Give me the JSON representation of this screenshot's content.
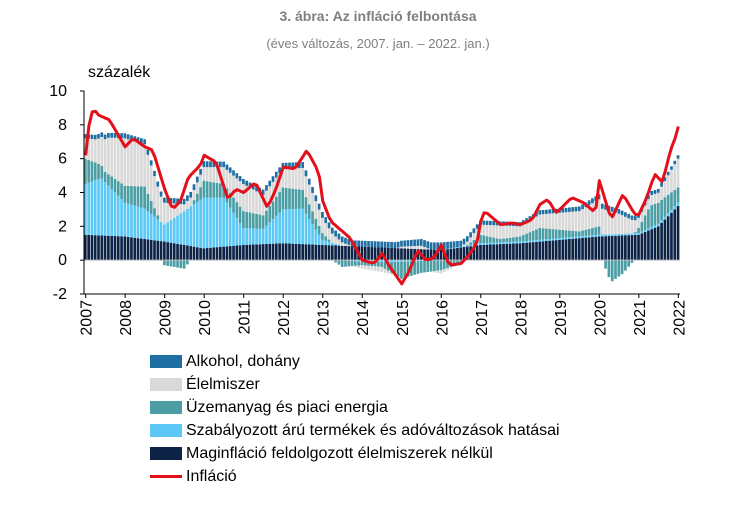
{
  "chart_data": {
    "type": "bar",
    "title": "3. ábra: Az infláció felbontása",
    "subtitle": "(éves változás, 2007. jan. – 2022. jan.)",
    "ylabel": "százalék",
    "ylim": [
      -2,
      10
    ],
    "y_ticks": [
      "10",
      "8",
      "6",
      "4",
      "2",
      "0",
      "-2"
    ],
    "x_tick_labels": [
      "2007",
      "2008",
      "2009",
      "2010",
      "2011",
      "2012",
      "2013",
      "2014",
      "2015",
      "2016",
      "2017",
      "2018",
      "2019",
      "2020",
      "2021",
      "2022"
    ],
    "x_start": "2007-01",
    "x_end": "2022-01",
    "grid": false,
    "legend_position": "bottom-left",
    "series": [
      {
        "name": "Alkohol, dohány",
        "color": "#1f6fa3",
        "kind": "bar",
        "keyframes": [
          [
            2007.0,
            0.25
          ],
          [
            2008.0,
            0.3
          ],
          [
            2009.0,
            0.3
          ],
          [
            2010.0,
            0.35
          ],
          [
            2011.0,
            0.3
          ],
          [
            2012.0,
            0.35
          ],
          [
            2013.0,
            0.35
          ],
          [
            2014.0,
            0.35
          ],
          [
            2015.0,
            0.35
          ],
          [
            2016.0,
            0.45
          ],
          [
            2017.0,
            0.25
          ],
          [
            2018.0,
            0.25
          ],
          [
            2019.0,
            0.25
          ],
          [
            2020.0,
            0.3
          ],
          [
            2021.0,
            0.25
          ],
          [
            2022.0,
            0.2
          ]
        ]
      },
      {
        "name": "Élelmiszer",
        "color": "#d9d9d9",
        "kind": "bar",
        "keyframes": [
          [
            2007.0,
            1.2
          ],
          [
            2007.3,
            1.4
          ],
          [
            2007.6,
            2.2
          ],
          [
            2008.0,
            2.8
          ],
          [
            2008.5,
            2.5
          ],
          [
            2009.0,
            1.3
          ],
          [
            2009.5,
            0.4
          ],
          [
            2010.0,
            0.8
          ],
          [
            2010.5,
            1.0
          ],
          [
            2011.0,
            1.6
          ],
          [
            2011.5,
            1.2
          ],
          [
            2012.0,
            1.1
          ],
          [
            2012.5,
            1.3
          ],
          [
            2013.0,
            0.9
          ],
          [
            2013.5,
            0.2
          ],
          [
            2014.0,
            -0.2
          ],
          [
            2014.5,
            -0.3
          ],
          [
            2015.0,
            0.1
          ],
          [
            2015.5,
            0.2
          ],
          [
            2016.0,
            -0.2
          ],
          [
            2016.5,
            0.0
          ],
          [
            2017.0,
            0.6
          ],
          [
            2017.5,
            0.8
          ],
          [
            2018.0,
            0.6
          ],
          [
            2018.5,
            0.8
          ],
          [
            2019.0,
            1.0
          ],
          [
            2019.5,
            1.2
          ],
          [
            2020.0,
            1.6
          ],
          [
            2020.5,
            1.2
          ],
          [
            2021.0,
            0.6
          ],
          [
            2021.5,
            0.6
          ],
          [
            2022.0,
            1.7
          ]
        ]
      },
      {
        "name": "Üzemanyag és piaci energia",
        "color": "#4a9ea4",
        "kind": "bar",
        "keyframes": [
          [
            2007.0,
            1.5
          ],
          [
            2007.5,
            0.6
          ],
          [
            2008.0,
            1.0
          ],
          [
            2008.5,
            1.3
          ],
          [
            2009.0,
            -0.3
          ],
          [
            2009.5,
            -0.5
          ],
          [
            2010.0,
            1.0
          ],
          [
            2010.5,
            0.8
          ],
          [
            2011.0,
            1.0
          ],
          [
            2011.5,
            0.8
          ],
          [
            2012.0,
            1.3
          ],
          [
            2012.5,
            1.1
          ],
          [
            2013.0,
            0.4
          ],
          [
            2013.5,
            -0.4
          ],
          [
            2014.0,
            -0.2
          ],
          [
            2014.5,
            -0.3
          ],
          [
            2015.0,
            -1.0
          ],
          [
            2015.5,
            -0.7
          ],
          [
            2016.0,
            -0.6
          ],
          [
            2016.5,
            -0.2
          ],
          [
            2017.0,
            0.5
          ],
          [
            2017.5,
            0.2
          ],
          [
            2018.0,
            0.3
          ],
          [
            2018.5,
            0.7
          ],
          [
            2019.0,
            0.5
          ],
          [
            2019.5,
            0.3
          ],
          [
            2020.0,
            0.5
          ],
          [
            2020.3,
            -1.3
          ],
          [
            2020.6,
            -0.8
          ],
          [
            2021.0,
            0.3
          ],
          [
            2021.3,
            1.3
          ],
          [
            2021.6,
            1.2
          ],
          [
            2022.0,
            0.9
          ]
        ]
      },
      {
        "name": "Szabályozott árú termékek és adóváltozások hatásai",
        "color": "#5bc8f5",
        "kind": "bar",
        "keyframes": [
          [
            2007.0,
            3.0
          ],
          [
            2007.4,
            3.4
          ],
          [
            2008.0,
            2.0
          ],
          [
            2008.5,
            1.8
          ],
          [
            2009.0,
            1.0
          ],
          [
            2009.6,
            2.2
          ],
          [
            2010.0,
            3.0
          ],
          [
            2010.5,
            2.9
          ],
          [
            2011.0,
            1.0
          ],
          [
            2011.5,
            0.9
          ],
          [
            2012.0,
            2.0
          ],
          [
            2012.5,
            2.1
          ],
          [
            2013.0,
            0.3
          ],
          [
            2013.5,
            0.0
          ],
          [
            2014.0,
            -0.1
          ],
          [
            2015.0,
            -0.1
          ],
          [
            2016.0,
            0.0
          ],
          [
            2017.0,
            0.1
          ],
          [
            2018.0,
            0.1
          ],
          [
            2019.0,
            0.1
          ],
          [
            2020.0,
            0.1
          ],
          [
            2021.0,
            0.1
          ],
          [
            2022.0,
            0.2
          ]
        ]
      },
      {
        "name": "Maginfláció feldolgozott élelmiszerek nélkül",
        "color": "#0d2346",
        "kind": "bar",
        "keyframes": [
          [
            2007.0,
            1.5
          ],
          [
            2008.0,
            1.4
          ],
          [
            2009.0,
            1.1
          ],
          [
            2010.0,
            0.7
          ],
          [
            2011.0,
            0.9
          ],
          [
            2012.0,
            1.0
          ],
          [
            2013.0,
            0.9
          ],
          [
            2014.0,
            0.8
          ],
          [
            2015.0,
            0.7
          ],
          [
            2016.0,
            0.6
          ],
          [
            2017.0,
            0.9
          ],
          [
            2018.0,
            1.0
          ],
          [
            2019.0,
            1.2
          ],
          [
            2020.0,
            1.4
          ],
          [
            2021.0,
            1.5
          ],
          [
            2021.5,
            2.0
          ],
          [
            2022.0,
            3.2
          ]
        ]
      },
      {
        "name": "Infláció",
        "color": "#e3101b",
        "kind": "line",
        "keyframes": [
          [
            2007.0,
            6.2
          ],
          [
            2007.1,
            8.3
          ],
          [
            2007.2,
            9.0
          ],
          [
            2007.3,
            8.6
          ],
          [
            2007.6,
            8.3
          ],
          [
            2007.9,
            7.1
          ],
          [
            2008.0,
            6.7
          ],
          [
            2008.2,
            7.2
          ],
          [
            2008.5,
            6.7
          ],
          [
            2008.7,
            6.5
          ],
          [
            2009.0,
            4.2
          ],
          [
            2009.2,
            3.0
          ],
          [
            2009.4,
            3.5
          ],
          [
            2009.6,
            4.9
          ],
          [
            2009.9,
            5.6
          ],
          [
            2010.0,
            6.2
          ],
          [
            2010.3,
            5.8
          ],
          [
            2010.6,
            3.6
          ],
          [
            2010.8,
            4.2
          ],
          [
            2011.0,
            4.0
          ],
          [
            2011.3,
            4.6
          ],
          [
            2011.6,
            3.1
          ],
          [
            2011.8,
            4.1
          ],
          [
            2012.0,
            5.5
          ],
          [
            2012.3,
            5.4
          ],
          [
            2012.6,
            6.5
          ],
          [
            2012.9,
            5.2
          ],
          [
            2013.0,
            3.5
          ],
          [
            2013.2,
            2.3
          ],
          [
            2013.5,
            1.7
          ],
          [
            2013.7,
            1.3
          ],
          [
            2014.0,
            0.0
          ],
          [
            2014.3,
            -0.2
          ],
          [
            2014.5,
            0.4
          ],
          [
            2014.7,
            -0.4
          ],
          [
            2015.0,
            -1.4
          ],
          [
            2015.2,
            -0.6
          ],
          [
            2015.4,
            0.6
          ],
          [
            2015.6,
            0.0
          ],
          [
            2015.8,
            0.1
          ],
          [
            2016.0,
            0.9
          ],
          [
            2016.2,
            -0.3
          ],
          [
            2016.5,
            -0.2
          ],
          [
            2016.7,
            0.3
          ],
          [
            2016.9,
            1.0
          ],
          [
            2017.0,
            2.3
          ],
          [
            2017.1,
            2.9
          ],
          [
            2017.5,
            2.1
          ],
          [
            2017.8,
            2.2
          ],
          [
            2018.0,
            2.1
          ],
          [
            2018.3,
            2.4
          ],
          [
            2018.5,
            3.3
          ],
          [
            2018.7,
            3.6
          ],
          [
            2018.9,
            2.8
          ],
          [
            2019.0,
            3.0
          ],
          [
            2019.3,
            3.7
          ],
          [
            2019.6,
            3.4
          ],
          [
            2019.9,
            2.8
          ],
          [
            2020.0,
            4.7
          ],
          [
            2020.3,
            2.4
          ],
          [
            2020.6,
            3.9
          ],
          [
            2020.9,
            2.7
          ],
          [
            2021.0,
            2.7
          ],
          [
            2021.2,
            3.7
          ],
          [
            2021.4,
            5.1
          ],
          [
            2021.6,
            4.6
          ],
          [
            2021.8,
            6.5
          ],
          [
            2021.95,
            7.4
          ],
          [
            2022.0,
            7.9
          ]
        ]
      }
    ]
  }
}
